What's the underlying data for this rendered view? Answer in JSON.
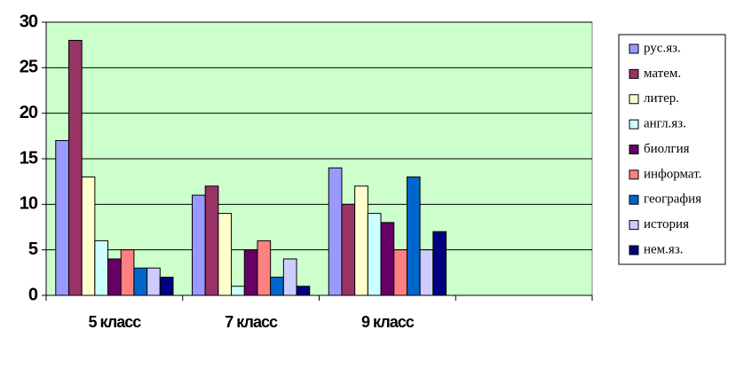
{
  "chart_data": {
    "type": "bar",
    "categories": [
      "5 класс",
      "7 класс",
      "9 класс",
      null
    ],
    "series": [
      {
        "name": "рус.яз.",
        "color": "#9999ff",
        "values": [
          17,
          11,
          14,
          null
        ]
      },
      {
        "name": "матем.",
        "color": "#993366",
        "values": [
          28,
          12,
          10,
          null
        ]
      },
      {
        "name": "литер.",
        "color": "#ffffcc",
        "values": [
          13,
          9,
          12,
          null
        ]
      },
      {
        "name": "англ.яз.",
        "color": "#ccffff",
        "values": [
          6,
          1,
          9,
          null
        ]
      },
      {
        "name": "биолгия",
        "color": "#660066",
        "values": [
          4,
          5,
          8,
          null
        ]
      },
      {
        "name": "информат.",
        "color": "#ff8080",
        "values": [
          5,
          6,
          5,
          null
        ]
      },
      {
        "name": "география",
        "color": "#0066cc",
        "values": [
          3,
          2,
          13,
          null
        ]
      },
      {
        "name": "история",
        "color": "#ccccff",
        "values": [
          3,
          4,
          5,
          null
        ]
      },
      {
        "name": "нем.яз.",
        "color": "#000080",
        "values": [
          2,
          1,
          7,
          null
        ]
      }
    ],
    "ylim": [
      0,
      30
    ],
    "yticks": [
      0,
      5,
      10,
      15,
      20,
      25,
      30
    ],
    "grid": true,
    "plot_background": "#ccffcc",
    "legend": "right"
  }
}
